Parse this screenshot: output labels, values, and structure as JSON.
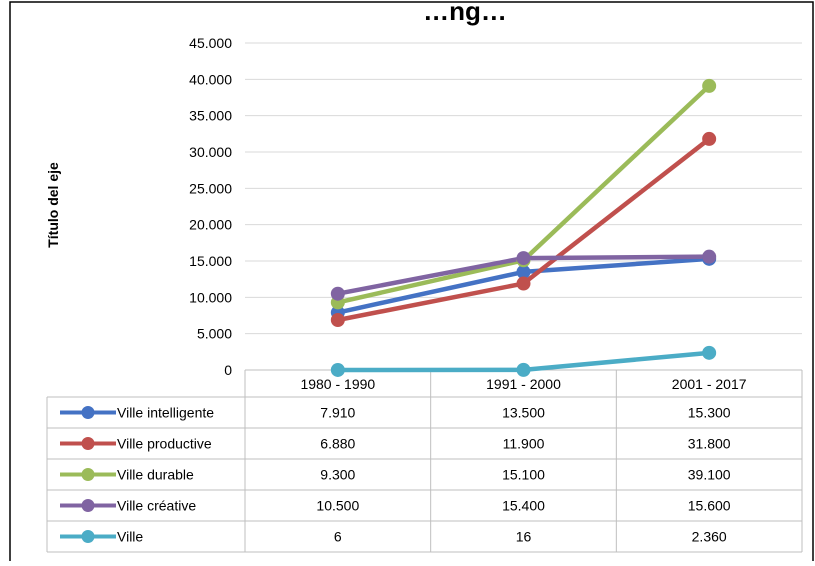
{
  "chart_data": {
    "type": "line",
    "title": "…ng…",
    "ylabel": "Título del eje",
    "categories": [
      "1980 - 1990",
      "1991 - 2000",
      "2001 - 2017"
    ],
    "ylim": [
      0,
      45000
    ],
    "yticks": [
      0,
      5000,
      10000,
      15000,
      20000,
      25000,
      30000,
      35000,
      40000,
      45000
    ],
    "ytick_labels": [
      "0",
      "5.000",
      "10.000",
      "15.000",
      "20.000",
      "25.000",
      "30.000",
      "35.000",
      "40.000",
      "45.000"
    ],
    "grid": true,
    "legend": "data-table",
    "series": [
      {
        "name": "Ville intelligente",
        "color": "#4472C4",
        "values": [
          7910,
          13500,
          15300
        ],
        "labels": [
          "7.910",
          "13.500",
          "15.300"
        ]
      },
      {
        "name": "Ville productive",
        "color": "#C0504D",
        "values": [
          6880,
          11900,
          31800
        ],
        "labels": [
          "6.880",
          "11.900",
          "31.800"
        ]
      },
      {
        "name": "Ville durable",
        "color": "#9BBB59",
        "values": [
          9300,
          15100,
          39100
        ],
        "labels": [
          "9.300",
          "15.100",
          "39.100"
        ]
      },
      {
        "name": "Ville créative",
        "color": "#8064A2",
        "values": [
          10500,
          15400,
          15600
        ],
        "labels": [
          "10.500",
          "15.400",
          "15.600"
        ]
      },
      {
        "name": "Ville",
        "color": "#4BACC6",
        "values": [
          6,
          16,
          2360
        ],
        "labels": [
          "6",
          "16",
          "2.360"
        ]
      }
    ]
  }
}
